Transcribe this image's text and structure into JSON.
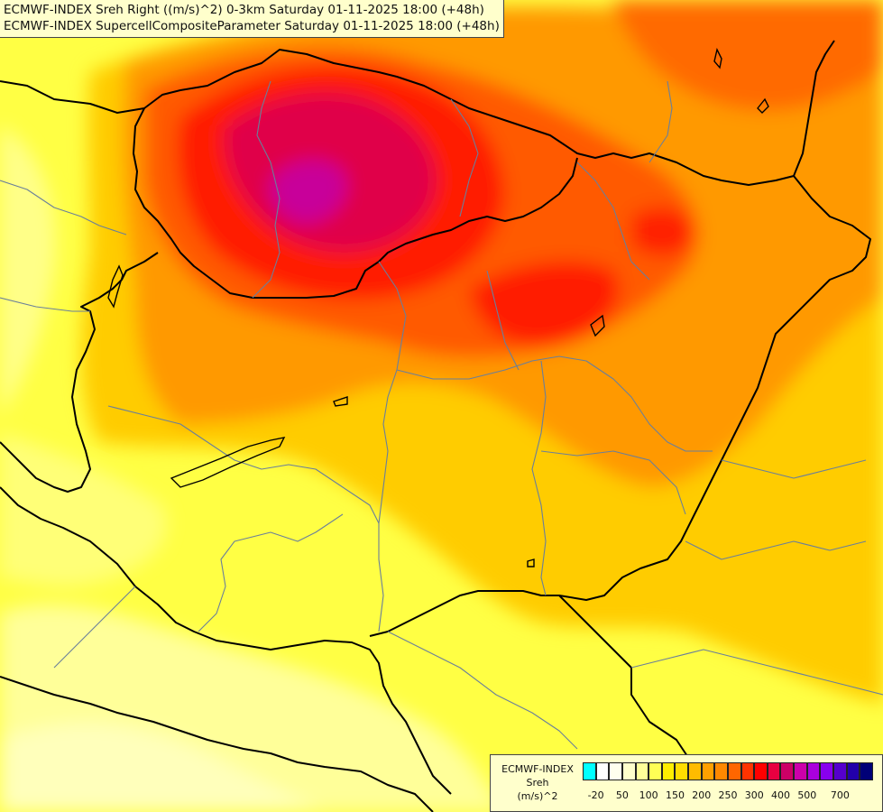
{
  "header": {
    "line1": "ECMWF-INDEX Sreh Right ((m/s)^2) 0-3km Saturday 01-11-2025 18:00 (+48h)",
    "line2": "ECMWF-INDEX SupercellCompositeParameter Saturday 01-11-2025 18:00 (+48h)"
  },
  "legend": {
    "model": "ECMWF-INDEX",
    "field": "Sreh",
    "unit": "(m/s)^2",
    "colors": [
      "#00ffff",
      "#ffffff",
      "#ffffee",
      "#ffffcc",
      "#ffff99",
      "#ffff55",
      "#ffee00",
      "#ffdd00",
      "#ffbb00",
      "#ffa000",
      "#ff8800",
      "#ff6600",
      "#ff3300",
      "#ff0000",
      "#e80040",
      "#cc0066",
      "#cc00aa",
      "#aa00dd",
      "#8800ee",
      "#5500cc",
      "#2200aa",
      "#000077"
    ],
    "ticks": [
      "-20",
      "50",
      "100",
      "150",
      "200",
      "250",
      "300",
      "400",
      "500",
      "700"
    ]
  },
  "colors": {
    "boundary_country": "#000000",
    "boundary_region": "#6a7f9a",
    "level_low": "#ffff99",
    "level_mid": "#ffcc00",
    "level_high": "#ff8800",
    "level_peak": "#cc0088"
  }
}
